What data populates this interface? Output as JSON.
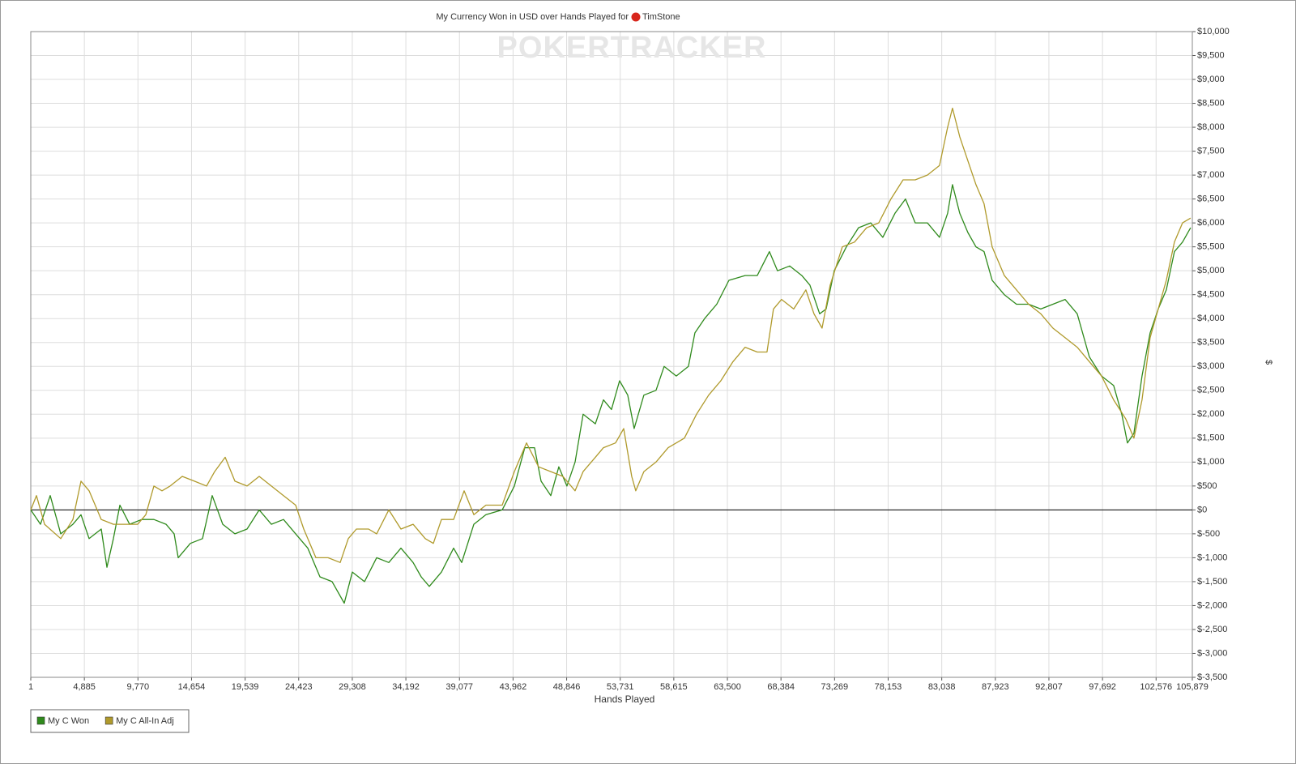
{
  "chart_data": {
    "type": "line",
    "title": "My Currency Won in USD over Hands Played for",
    "player": "TimStone",
    "watermark": "POKERTRACKER",
    "x_label": "Hands Played",
    "y_label": "$",
    "xlim": [
      1,
      105879
    ],
    "ylim": [
      -3500,
      10000
    ],
    "grid": true,
    "legend": "bottom-left",
    "xticks": [
      1,
      {
        "value": 4885,
        "label": "4,885"
      },
      {
        "value": 9770,
        "label": "9,770"
      },
      {
        "value": 14654,
        "label": "14,654"
      },
      {
        "value": 19539,
        "label": "19,539"
      },
      {
        "value": 24423,
        "label": "24,423"
      },
      {
        "value": 29308,
        "label": "29,308"
      },
      {
        "value": 34192,
        "label": "34,192"
      },
      {
        "value": 39077,
        "label": "39,077"
      },
      {
        "value": 43962,
        "label": "43,962"
      },
      {
        "value": 48846,
        "label": "48,846"
      },
      {
        "value": 53731,
        "label": "53,731"
      },
      {
        "value": 58615,
        "label": "58,615"
      },
      {
        "value": 63500,
        "label": "63,500"
      },
      {
        "value": 68384,
        "label": "68,384"
      },
      {
        "value": 73269,
        "label": "73,269"
      },
      {
        "value": 78153,
        "label": "78,153"
      },
      {
        "value": 83038,
        "label": "83,038"
      },
      {
        "value": 87923,
        "label": "87,923"
      },
      {
        "value": 92807,
        "label": "92,807"
      },
      {
        "value": 97692,
        "label": "97,692"
      },
      {
        "value": 102576,
        "label": "102,576"
      },
      {
        "value": 105879,
        "label": "105,879"
      }
    ],
    "yticks": [
      {
        "value": -3500,
        "label": "$-3,500"
      },
      {
        "value": -3000,
        "label": "$-3,000"
      },
      {
        "value": -2500,
        "label": "$-2,500"
      },
      {
        "value": -2000,
        "label": "$-2,000"
      },
      {
        "value": -1500,
        "label": "$-1,500"
      },
      {
        "value": -1000,
        "label": "$-1,000"
      },
      {
        "value": -500,
        "label": "$-500"
      },
      {
        "value": 0,
        "label": "$0"
      },
      {
        "value": 500,
        "label": "$500"
      },
      {
        "value": 1000,
        "label": "$1,000"
      },
      {
        "value": 1500,
        "label": "$1,500"
      },
      {
        "value": 2000,
        "label": "$2,000"
      },
      {
        "value": 2500,
        "label": "$2,500"
      },
      {
        "value": 3000,
        "label": "$3,000"
      },
      {
        "value": 3500,
        "label": "$3,500"
      },
      {
        "value": 4000,
        "label": "$4,000"
      },
      {
        "value": 4500,
        "label": "$4,500"
      },
      {
        "value": 5000,
        "label": "$5,000"
      },
      {
        "value": 5500,
        "label": "$5,500"
      },
      {
        "value": 6000,
        "label": "$6,000"
      },
      {
        "value": 6500,
        "label": "$6,500"
      },
      {
        "value": 7000,
        "label": "$7,000"
      },
      {
        "value": 7500,
        "label": "$7,500"
      },
      {
        "value": 8000,
        "label": "$8,000"
      },
      {
        "value": 8500,
        "label": "$8,500"
      },
      {
        "value": 9000,
        "label": "$9,000"
      },
      {
        "value": 9500,
        "label": "$9,500"
      },
      {
        "value": 10000,
        "label": "$10,000"
      }
    ],
    "series": [
      {
        "name": "My C Won",
        "color": "#2f8a1c",
        "x": [
          1,
          886,
          1772,
          2732,
          3839,
          4577,
          5316,
          6423,
          6940,
          7531,
          8121,
          9007,
          10115,
          11222,
          12330,
          13068,
          13437,
          14545,
          15652,
          16538,
          17498,
          18605,
          19713,
          20820,
          21928,
          23035,
          24142,
          25250,
          26357,
          27465,
          28572,
          29311,
          30418,
          31525,
          32633,
          33740,
          34848,
          35586,
          36324,
          37432,
          38539,
          39278,
          40385,
          41492,
          42969,
          44077,
          45036,
          45922,
          46513,
          47399,
          48137,
          48875,
          49614,
          50352,
          51460,
          52198,
          52936,
          53674,
          54413,
          55003,
          55889,
          56997,
          57735,
          58843,
          59950,
          60541,
          61427,
          62534,
          63641,
          65118,
          66226,
          67333,
          68071,
          69179,
          70286,
          71024,
          71910,
          72501,
          73239,
          74347,
          75454,
          76562,
          77669,
          78777,
          79736,
          80622,
          81730,
          82837,
          83576,
          84019,
          84683,
          85421,
          86160,
          86898,
          87636,
          88744,
          89851,
          90959,
          92066,
          93173,
          94281,
          95388,
          96496,
          97603,
          98711,
          99449,
          99966,
          100556,
          101295,
          102033,
          102771,
          103510,
          104248,
          104986,
          105725
        ],
        "values": [
          0,
          -300,
          300,
          -500,
          -300,
          -100,
          -600,
          -400,
          -1200,
          -600,
          100,
          -300,
          -200,
          -200,
          -300,
          -500,
          -1000,
          -700,
          -600,
          300,
          -300,
          -500,
          -400,
          0,
          -300,
          -200,
          -500,
          -800,
          -1400,
          -1500,
          -1950,
          -1300,
          -1500,
          -1000,
          -1100,
          -800,
          -1100,
          -1400,
          -1600,
          -1300,
          -800,
          -1100,
          -300,
          -100,
          0,
          500,
          1300,
          1300,
          600,
          300,
          900,
          500,
          1000,
          2000,
          1800,
          2300,
          2100,
          2700,
          2400,
          1700,
          2400,
          2500,
          3000,
          2800,
          3000,
          3700,
          4000,
          4300,
          4800,
          4900,
          4900,
          5400,
          5000,
          5100,
          4900,
          4700,
          4100,
          4200,
          5000,
          5500,
          5900,
          6000,
          5700,
          6200,
          6500,
          6000,
          6000,
          5700,
          6200,
          6800,
          6200,
          5800,
          5500,
          5400,
          4800,
          4500,
          4300,
          4300,
          4200,
          4300,
          4400,
          4100,
          3200,
          2800,
          2600,
          2000,
          1400,
          1600,
          2800,
          3700,
          4200,
          4600,
          5400,
          5600,
          5900
        ]
      },
      {
        "name": "My C All-In Adj",
        "color": "#b09a2c",
        "x": [
          1,
          517,
          1255,
          2732,
          3839,
          4577,
          5316,
          6423,
          7531,
          8638,
          9746,
          10484,
          11222,
          11960,
          12699,
          13806,
          14914,
          16021,
          16760,
          17719,
          18605,
          19713,
          20820,
          21928,
          23035,
          24142,
          24881,
          25988,
          27096,
          28203,
          28941,
          29680,
          30787,
          31525,
          32633,
          33740,
          34848,
          35955,
          36694,
          37432,
          38539,
          39499,
          40385,
          41492,
          42969,
          44077,
          45184,
          46291,
          47399,
          48506,
          49614,
          50352,
          51460,
          52198,
          53305,
          54044,
          54782,
          55151,
          55889,
          56997,
          58104,
          59581,
          60688,
          61796,
          62903,
          64011,
          65118,
          66226,
          67111,
          67702,
          68440,
          69548,
          70655,
          71394,
          72132,
          72870,
          73978,
          75085,
          76193,
          77300,
          78407,
          79515,
          80622,
          81730,
          82837,
          83576,
          84019,
          84683,
          85421,
          86160,
          86898,
          87636,
          88744,
          89851,
          90959,
          92066,
          93173,
          94281,
          95388,
          96496,
          97603,
          98711,
          99818,
          100556,
          101295,
          102033,
          102771,
          103510,
          104248,
          104986,
          105725
        ],
        "values": [
          0,
          300,
          -300,
          -600,
          -200,
          600,
          400,
          -200,
          -300,
          -300,
          -300,
          -100,
          500,
          400,
          500,
          700,
          600,
          500,
          800,
          1100,
          600,
          500,
          700,
          500,
          300,
          100,
          -400,
          -1000,
          -1000,
          -1100,
          -600,
          -400,
          -400,
          -500,
          0,
          -400,
          -300,
          -600,
          -700,
          -200,
          -200,
          400,
          -100,
          100,
          100,
          800,
          1400,
          900,
          800,
          700,
          400,
          800,
          1100,
          1300,
          1400,
          1700,
          700,
          400,
          800,
          1000,
          1300,
          1500,
          2000,
          2400,
          2700,
          3100,
          3400,
          3300,
          3300,
          4200,
          4400,
          4200,
          4600,
          4100,
          3800,
          4700,
          5500,
          5600,
          5900,
          6000,
          6500,
          6900,
          6900,
          7000,
          7200,
          8000,
          8400,
          7800,
          7300,
          6800,
          6400,
          5500,
          4900,
          4600,
          4300,
          4100,
          3800,
          3600,
          3400,
          3100,
          2800,
          2300,
          1900,
          1500,
          2300,
          3600,
          4200,
          4800,
          5600,
          6000,
          6100
        ]
      }
    ]
  }
}
